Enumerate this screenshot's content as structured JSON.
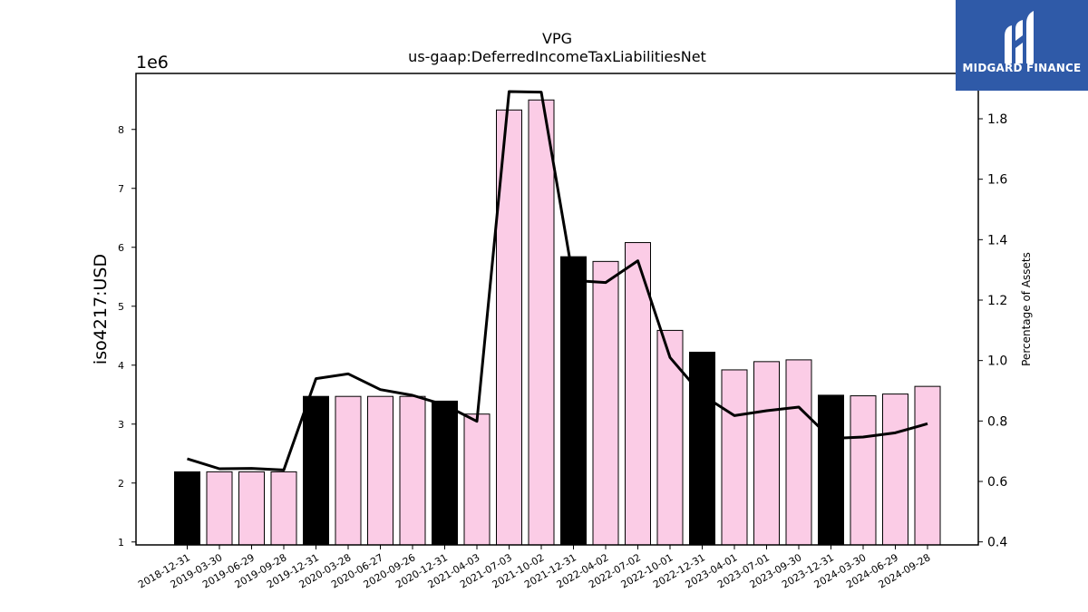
{
  "chart_data": {
    "type": "bar",
    "title": "VPG",
    "subtitle": "us-gaap:DeferredIncomeTaxLiabilitiesNet",
    "ylabel": "iso4217:USD",
    "y_multiplier_label": "1e6",
    "y2label": "Percentage of Assets",
    "ylim": [
      0.95,
      8.95
    ],
    "y2lim": [
      0.39,
      1.95
    ],
    "yticks": [
      "1",
      "2",
      "3",
      "4",
      "5",
      "6",
      "7",
      "8"
    ],
    "y2ticks": [
      "0.4",
      "0.6",
      "0.8",
      "1.0",
      "1.2",
      "1.4",
      "1.6",
      "1.8"
    ],
    "categories": [
      "2018-12-31",
      "2019-03-30",
      "2019-06-29",
      "2019-09-28",
      "2019-12-31",
      "2020-03-28",
      "2020-06-27",
      "2020-09-26",
      "2020-12-31",
      "2021-04-03",
      "2021-07-03",
      "2021-10-02",
      "2021-12-31",
      "2022-04-02",
      "2022-07-02",
      "2022-10-01",
      "2022-12-31",
      "2023-04-01",
      "2023-07-01",
      "2023-09-30",
      "2023-12-31",
      "2024-03-30",
      "2024-06-29",
      "2024-09-28"
    ],
    "values": [
      2.19,
      2.19,
      2.19,
      2.19,
      3.47,
      3.47,
      3.47,
      3.47,
      3.39,
      3.17,
      8.33,
      8.5,
      5.84,
      5.76,
      6.08,
      4.59,
      4.22,
      3.92,
      4.06,
      4.09,
      3.49,
      3.48,
      3.51,
      3.64
    ],
    "bar_colors": [
      "#000000",
      "#fbcce6",
      "#fbcce6",
      "#fbcce6",
      "#000000",
      "#fbcce6",
      "#fbcce6",
      "#fbcce6",
      "#000000",
      "#fbcce6",
      "#fbcce6",
      "#fbcce6",
      "#000000",
      "#fbcce6",
      "#fbcce6",
      "#fbcce6",
      "#000000",
      "#fbcce6",
      "#fbcce6",
      "#fbcce6",
      "#000000",
      "#fbcce6",
      "#fbcce6",
      "#fbcce6"
    ],
    "pct_of_assets": [
      0.675,
      0.642,
      0.643,
      0.638,
      0.94,
      0.956,
      0.904,
      0.885,
      0.853,
      0.799,
      1.89,
      1.888,
      1.265,
      1.258,
      1.33,
      1.01,
      0.886,
      0.818,
      0.834,
      0.846,
      0.742,
      0.747,
      0.761,
      0.791
    ],
    "grid": false,
    "legend": "none"
  },
  "logo": {
    "text": "MIDGARD FINANCE",
    "bg_color": "#2f5aa8"
  }
}
